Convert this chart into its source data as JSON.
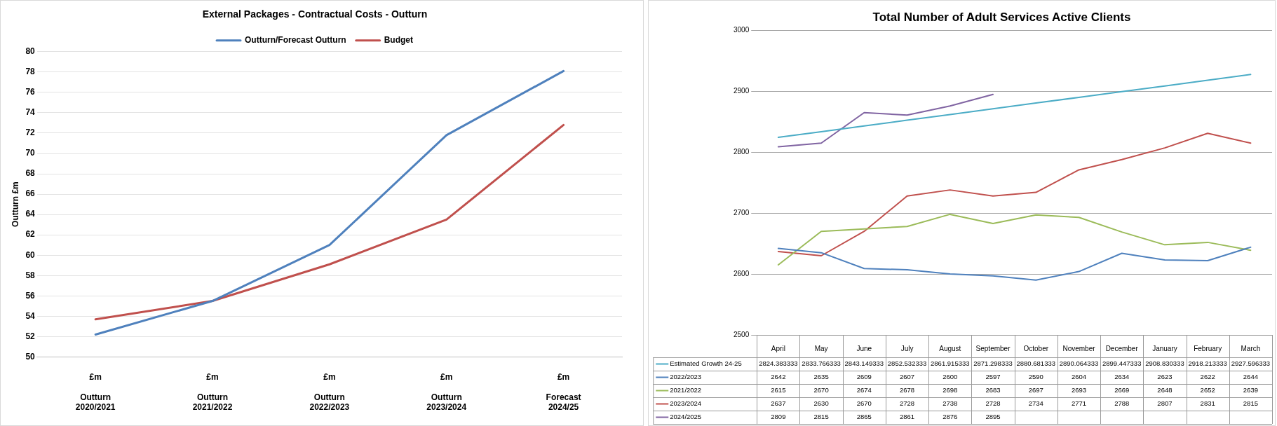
{
  "chart_data": [
    {
      "type": "line",
      "title": "External Packages - Contractual Costs - Outturn",
      "ylabel": "Outturn £m",
      "categories": [
        "£m\n\nOutturn\n2020/2021",
        "£m\n\nOutturn\n2021/2022",
        "£m\n\nOutturn\n2022/2023",
        "£m\n\nOutturn\n2023/2024",
        "£m\n\nForecast\n2024/25"
      ],
      "series": [
        {
          "name": "Outturn/Forecast Outturn",
          "color": "#4f81bd",
          "values": [
            52.2,
            55.5,
            61.0,
            71.8,
            78.1
          ]
        },
        {
          "name": "Budget",
          "color": "#c0504d",
          "values": [
            53.7,
            55.5,
            59.1,
            63.5,
            72.8
          ]
        }
      ],
      "ylim": [
        50,
        80
      ],
      "yticks": [
        50,
        52,
        54,
        56,
        58,
        60,
        62,
        64,
        66,
        68,
        70,
        72,
        74,
        76,
        78,
        80
      ],
      "grid": "y",
      "legend": "top"
    },
    {
      "type": "line",
      "title": "Total Number of Adult Services Active Clients",
      "categories": [
        "April",
        "May",
        "June",
        "July",
        "August",
        "September",
        "October",
        "November",
        "December",
        "January",
        "February",
        "March"
      ],
      "series": [
        {
          "name": "Estimated Growth 24-25",
          "color": "#4bacc6",
          "values": [
            2824.383333,
            2833.766333,
            2843.149333,
            2852.532333,
            2861.915333,
            2871.298333,
            2880.681333,
            2890.064333,
            2899.447333,
            2908.830333,
            2918.213333,
            2927.596333
          ]
        },
        {
          "name": "2022/2023",
          "color": "#4f81bd",
          "values": [
            2642,
            2635,
            2609,
            2607,
            2600,
            2597,
            2590,
            2604,
            2634,
            2623,
            2622,
            2644
          ]
        },
        {
          "name": "2021/2022",
          "color": "#9bbb59",
          "values": [
            2615,
            2670,
            2674,
            2678,
            2698,
            2683,
            2697,
            2693,
            2669,
            2648,
            2652,
            2639
          ]
        },
        {
          "name": "2023/2024",
          "color": "#c0504d",
          "values": [
            2637,
            2630,
            2670,
            2728,
            2738,
            2728,
            2734,
            2771,
            2788,
            2807,
            2831,
            2815
          ]
        },
        {
          "name": "2024/2025",
          "color": "#8064a2",
          "values": [
            2809,
            2815,
            2865,
            2861,
            2876,
            2895,
            null,
            null,
            null,
            null,
            null,
            null
          ]
        }
      ],
      "ylim": [
        2500,
        3000
      ],
      "yticks": [
        2500,
        2600,
        2700,
        2800,
        2900,
        3000
      ],
      "grid": "y",
      "legend": "bottom",
      "data_labels": true
    }
  ]
}
